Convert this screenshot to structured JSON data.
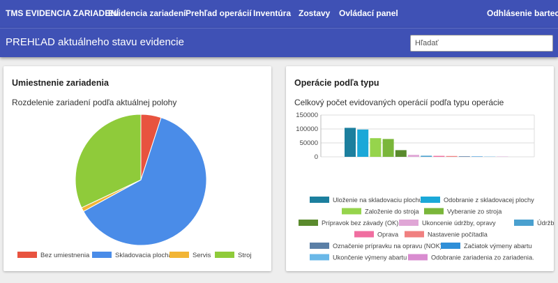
{
  "nav": {
    "brand": "TMS EVIDENCIA ZARIADENÍ",
    "items": [
      {
        "label": "Evidencia zariadení"
      },
      {
        "label": "Prehľad operácií"
      },
      {
        "label": "Inventúra"
      },
      {
        "label": "Zostavy"
      },
      {
        "label": "Ovládací panel"
      }
    ],
    "logout": "Odhlásenie bartech"
  },
  "header": {
    "title": "PREHĽAD aktuálneho stavu evidencie",
    "search_placeholder": "Hľadať"
  },
  "cards": [
    {
      "title": "Umiestnenie zariadenia",
      "subtitle": "Rozdelenie zariadení podľa aktuálnej polohy"
    },
    {
      "title": "Operácie podľa typu",
      "subtitle": "Celkový počet evidovaných operácií podľa typu operácie"
    }
  ],
  "chart_data": [
    {
      "type": "pie",
      "slices": [
        {
          "label": "Bez umiestnenia",
          "value": 5,
          "color": "#e8533f"
        },
        {
          "label": "Skladovacia plocha",
          "value": 62,
          "color": "#4a8ce8"
        },
        {
          "label": "Servis",
          "value": 1,
          "color": "#f2b535"
        },
        {
          "label": "Stroj",
          "value": 32,
          "color": "#8fcb3a"
        }
      ],
      "legend_position": "bottom"
    },
    {
      "type": "bar",
      "ylim": [
        0,
        150000
      ],
      "yticks": [
        "0",
        "50000",
        "100000",
        "150000"
      ],
      "grid": true,
      "legend_position": "bottom",
      "series": [
        {
          "name": "Uloženie na skladovaciu plochu",
          "value": 104000,
          "color": "#1c7f9e"
        },
        {
          "name": "Odobranie z skladovacej plochy",
          "value": 98000,
          "color": "#1ba8d8"
        },
        {
          "name": "Založenie do stroja",
          "value": 67000,
          "color": "#96d44c"
        },
        {
          "name": "Vyberanie zo stroja",
          "value": 64000,
          "color": "#7ab63a"
        },
        {
          "name": "Prípravok bez závady (OK).",
          "value": 24000,
          "color": "#5a8a2d"
        },
        {
          "name": "Ukoncenie údržby, opravy",
          "value": 7000,
          "color": "#e0a6d6"
        },
        {
          "name": "Údržba",
          "value": 4000,
          "color": "#4aa0cf"
        },
        {
          "name": "Oprava",
          "value": 3500,
          "color": "#f06ea0"
        },
        {
          "name": "Nastavenie počítadla",
          "value": 3000,
          "color": "#f08080"
        },
        {
          "name": "Označenie prípravku na opravu (NOK)",
          "value": 2000,
          "color": "#5b7fa6"
        },
        {
          "name": "Začiatok výmeny abartu",
          "value": 1500,
          "color": "#2f8fd8"
        },
        {
          "name": "Ukončenie výmeny abartu",
          "value": 1000,
          "color": "#6ab8e8"
        },
        {
          "name": "Odobranie zariadenia zo zariadenia.",
          "value": 800,
          "color": "#d98cd0"
        }
      ]
    }
  ]
}
